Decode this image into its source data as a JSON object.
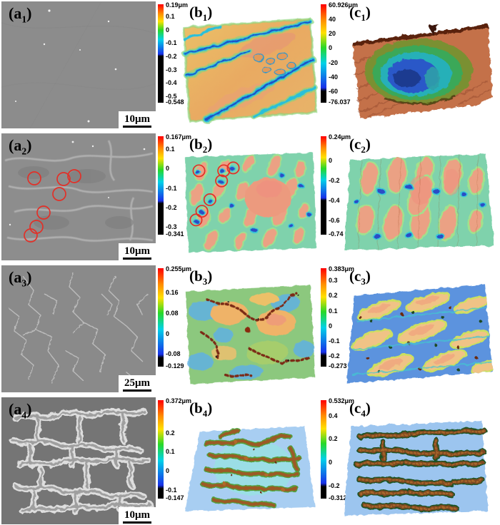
{
  "figure": {
    "title": "SEM and laser-scanning surface-topography panels",
    "rows": [
      {
        "sem": {
          "label_pre": "(a",
          "label_sub": "1",
          "label_post": ")",
          "scale_text": "10μm"
        },
        "b": {
          "label_pre": "(b",
          "label_sub": "1",
          "label_post": ")",
          "colorbar": {
            "top_label": "0.19μm",
            "max": 0.19,
            "min": -0.548,
            "black_start": -0.2,
            "ticks": [
              "0.1",
              "0",
              "-0.1",
              "-0.2",
              "-0.3",
              "-0.4",
              "-0.5"
            ],
            "bottom_label": "-0.548"
          }
        },
        "c": {
          "label_pre": "(c",
          "label_sub": "1",
          "label_post": ")",
          "colorbar": {
            "top_label": "60.926μm",
            "max": 60.926,
            "min": -76.037,
            "black_start": -60,
            "ticks": [
              "40",
              "20",
              "0",
              "-20",
              "-40",
              "-60"
            ],
            "bottom_label": "-76.037"
          }
        }
      },
      {
        "sem": {
          "label_pre": "(a",
          "label_sub": "2",
          "label_post": ")",
          "scale_text": "10μm"
        },
        "b": {
          "label_pre": "(b",
          "label_sub": "2",
          "label_post": ")",
          "colorbar": {
            "top_label": "0.167μm",
            "max": 0.167,
            "min": -0.341,
            "black_start": -0.18,
            "ticks": [
              "0.1",
              "0",
              "-0.1",
              "-0.2",
              "-0.3"
            ],
            "bottom_label": "-0.341"
          }
        },
        "c": {
          "label_pre": "(c",
          "label_sub": "2",
          "label_post": ")",
          "colorbar": {
            "top_label": "0.24μm",
            "max": 0.24,
            "min": -0.74,
            "black_start": -0.4,
            "ticks": [
              "0",
              "-0.2",
              "-0.4",
              "-0.6"
            ],
            "bottom_label": "-0.74"
          }
        }
      },
      {
        "sem": {
          "label_pre": "(a",
          "label_sub": "3",
          "label_post": ")",
          "scale_text": "25μm"
        },
        "b": {
          "label_pre": "(b",
          "label_sub": "3",
          "label_post": ")",
          "colorbar": {
            "top_label": "0.255μm",
            "max": 0.255,
            "min": -0.129,
            "black_start": -0.095,
            "ticks": [
              "0.16",
              "0.08",
              "0",
              "-0.08"
            ],
            "bottom_label": "-0.129"
          }
        },
        "c": {
          "label_pre": "(c",
          "label_sub": "3",
          "label_post": ")",
          "colorbar": {
            "top_label": "0.383μm",
            "max": 0.383,
            "min": -0.273,
            "black_start": -0.2,
            "ticks": [
              "0.3",
              "0.2",
              "0.1",
              "0",
              "-0.1",
              "-0.2"
            ],
            "bottom_label": "-0.273"
          }
        }
      },
      {
        "sem": {
          "label_pre": "(a",
          "label_sub": "4",
          "label_post": ")",
          "scale_text": "10μm"
        },
        "b": {
          "label_pre": "(b",
          "label_sub": "4",
          "label_post": ")",
          "colorbar": {
            "top_label": "0.372μm",
            "max": 0.372,
            "min": -0.147,
            "black_start": -0.095,
            "ticks": [
              "0.2",
              "0.1",
              "0",
              "-0.1"
            ],
            "bottom_label": "-0.147"
          }
        },
        "c": {
          "label_pre": "(c",
          "label_sub": "4",
          "label_post": ")",
          "colorbar": {
            "top_label": "0.532μm",
            "max": 0.532,
            "min": -0.312,
            "black_start": -0.21,
            "ticks": [
              "0.4",
              "0.2",
              "0",
              "-0.2"
            ],
            "bottom_label": "-0.312"
          }
        }
      }
    ]
  },
  "colors": {
    "annotation_red": "#e23028",
    "sem_gray": "#8b8b8b",
    "colorbar_black": "#000000",
    "surface_orange": "#e9aa62",
    "surface_cyan_green": "#7fd2ac",
    "surface_blue": "#5c93de",
    "flat_light_blue": "#a8cef2",
    "ridge_brown": "#9c5a28",
    "ridge_dark_green": "#1e5222"
  }
}
